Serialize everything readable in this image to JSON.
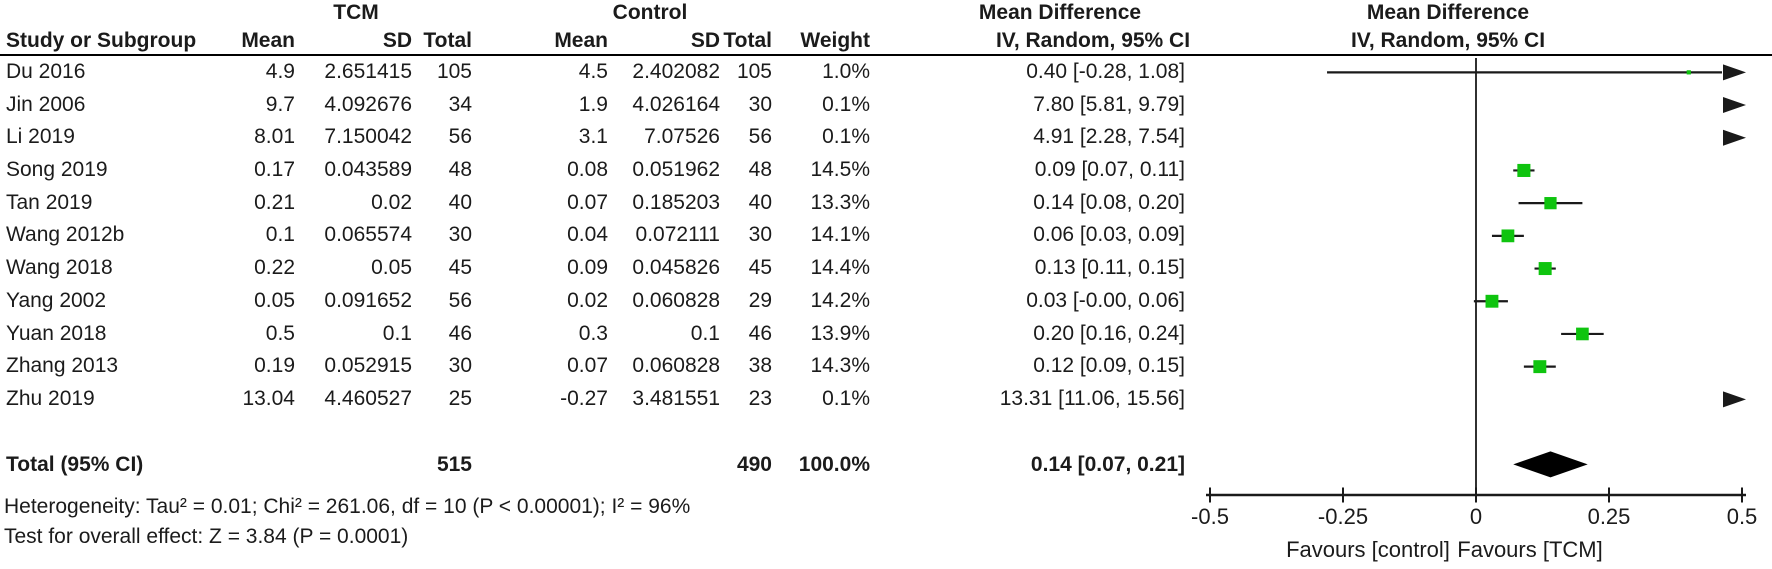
{
  "figure": {
    "group_headers": {
      "tcm": "TCM",
      "control": "Control",
      "mean_difference_table": "Mean Difference",
      "mean_difference_plot": "Mean Difference"
    },
    "column_headers": {
      "study": "Study or Subgroup",
      "mean_tcm": "Mean",
      "sd_tcm": "SD",
      "total_tcm": "Total",
      "mean_control": "Mean",
      "sd_control": "SD",
      "total_control": "Total",
      "weight": "Weight",
      "ci_table": "IV, Random, 95% CI",
      "ci_plot": "IV, Random, 95% CI"
    },
    "studies": [
      {
        "name": "Du 2016",
        "mean_t": "4.9",
        "sd_t": "2.651415",
        "total_t": "105",
        "mean_c": "4.5",
        "sd_c": "2.402082",
        "total_c": "105",
        "weight": "1.0%",
        "ci": "0.40 [-0.28, 1.08]"
      },
      {
        "name": "Jin 2006",
        "mean_t": "9.7",
        "sd_t": "4.092676",
        "total_t": "34",
        "mean_c": "1.9",
        "sd_c": "4.026164",
        "total_c": "30",
        "weight": "0.1%",
        "ci": "7.80 [5.81, 9.79]"
      },
      {
        "name": "Li 2019",
        "mean_t": "8.01",
        "sd_t": "7.150042",
        "total_t": "56",
        "mean_c": "3.1",
        "sd_c": "7.07526",
        "total_c": "56",
        "weight": "0.1%",
        "ci": "4.91 [2.28, 7.54]"
      },
      {
        "name": "Song 2019",
        "mean_t": "0.17",
        "sd_t": "0.043589",
        "total_t": "48",
        "mean_c": "0.08",
        "sd_c": "0.051962",
        "total_c": "48",
        "weight": "14.5%",
        "ci": "0.09 [0.07, 0.11]"
      },
      {
        "name": "Tan 2019",
        "mean_t": "0.21",
        "sd_t": "0.02",
        "total_t": "40",
        "mean_c": "0.07",
        "sd_c": "0.185203",
        "total_c": "40",
        "weight": "13.3%",
        "ci": "0.14 [0.08, 0.20]"
      },
      {
        "name": "Wang 2012b",
        "mean_t": "0.1",
        "sd_t": "0.065574",
        "total_t": "30",
        "mean_c": "0.04",
        "sd_c": "0.072111",
        "total_c": "30",
        "weight": "14.1%",
        "ci": "0.06 [0.03, 0.09]"
      },
      {
        "name": "Wang 2018",
        "mean_t": "0.22",
        "sd_t": "0.05",
        "total_t": "45",
        "mean_c": "0.09",
        "sd_c": "0.045826",
        "total_c": "45",
        "weight": "14.4%",
        "ci": "0.13 [0.11, 0.15]"
      },
      {
        "name": "Yang 2002",
        "mean_t": "0.05",
        "sd_t": "0.091652",
        "total_t": "56",
        "mean_c": "0.02",
        "sd_c": "0.060828",
        "total_c": "29",
        "weight": "14.2%",
        "ci": "0.03 [-0.00, 0.06]"
      },
      {
        "name": "Yuan 2018",
        "mean_t": "0.5",
        "sd_t": "0.1",
        "total_t": "46",
        "mean_c": "0.3",
        "sd_c": "0.1",
        "total_c": "46",
        "weight": "13.9%",
        "ci": "0.20 [0.16, 0.24]"
      },
      {
        "name": "Zhang 2013",
        "mean_t": "0.19",
        "sd_t": "0.052915",
        "total_t": "30",
        "mean_c": "0.07",
        "sd_c": "0.060828",
        "total_c": "38",
        "weight": "14.3%",
        "ci": "0.12 [0.09, 0.15]"
      },
      {
        "name": "Zhu 2019",
        "mean_t": "13.04",
        "sd_t": "4.460527",
        "total_t": "25",
        "mean_c": "-0.27",
        "sd_c": "3.481551",
        "total_c": "23",
        "weight": "0.1%",
        "ci": "13.31 [11.06, 15.56]"
      }
    ],
    "total_row": {
      "label": "Total (95% CI)",
      "total_t": "515",
      "total_c": "490",
      "weight": "100.0%",
      "ci": "0.14 [0.07, 0.21]"
    },
    "footer": {
      "heterogeneity": "Heterogeneity: Tau² = 0.01; Chi² = 261.06, df = 10 (P < 0.00001); I² = 96%",
      "overall_effect": "Test for overall effect: Z = 3.84 (P = 0.0001)"
    }
  },
  "chart_data": {
    "type": "forest",
    "effect_measure": "Mean Difference",
    "model": "IV, Random, 95% CI",
    "xlim": [
      -0.5,
      0.5
    ],
    "ticks": [
      -0.5,
      -0.25,
      0,
      0.25,
      0.5
    ],
    "tick_labels": [
      "-0.5",
      "-0.25",
      "0",
      "0.25",
      "0.5"
    ],
    "favours_left": "Favours [control]",
    "favours_right": "Favours [TCM]",
    "marker_color": "#0fc40f",
    "line_color": "#1a1a1a",
    "studies": [
      {
        "label": "Du 2016",
        "md": 0.4,
        "lo": -0.28,
        "hi": 1.08,
        "weight": 1.0
      },
      {
        "label": "Jin 2006",
        "md": 7.8,
        "lo": 5.81,
        "hi": 9.79,
        "weight": 0.1
      },
      {
        "label": "Li 2019",
        "md": 4.91,
        "lo": 2.28,
        "hi": 7.54,
        "weight": 0.1
      },
      {
        "label": "Song 2019",
        "md": 0.09,
        "lo": 0.07,
        "hi": 0.11,
        "weight": 14.5
      },
      {
        "label": "Tan 2019",
        "md": 0.14,
        "lo": 0.08,
        "hi": 0.2,
        "weight": 13.3
      },
      {
        "label": "Wang 2012b",
        "md": 0.06,
        "lo": 0.03,
        "hi": 0.09,
        "weight": 14.1
      },
      {
        "label": "Wang 2018",
        "md": 0.13,
        "lo": 0.11,
        "hi": 0.15,
        "weight": 14.4
      },
      {
        "label": "Yang 2002",
        "md": 0.03,
        "lo": -0.004,
        "hi": 0.06,
        "weight": 14.2
      },
      {
        "label": "Yuan 2018",
        "md": 0.2,
        "lo": 0.16,
        "hi": 0.24,
        "weight": 13.9
      },
      {
        "label": "Zhang 2013",
        "md": 0.12,
        "lo": 0.09,
        "hi": 0.15,
        "weight": 14.3
      },
      {
        "label": "Zhu 2019",
        "md": 13.31,
        "lo": 11.06,
        "hi": 15.56,
        "weight": 0.1
      }
    ],
    "total": {
      "md": 0.14,
      "lo": 0.07,
      "hi": 0.21
    }
  }
}
